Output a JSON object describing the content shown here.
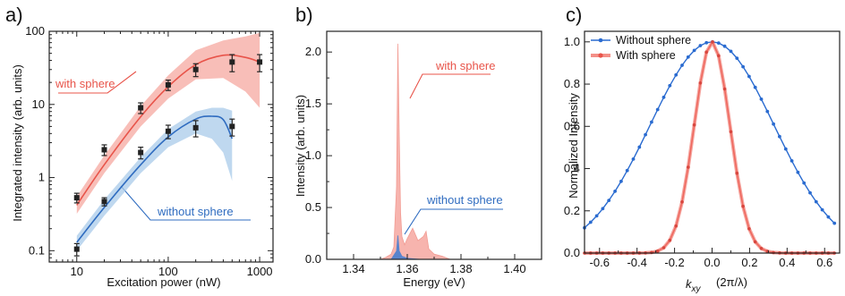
{
  "chart_data": [
    {
      "type": "scatter",
      "panel_label": "a)",
      "xlabel": "Excitation power  (nW)",
      "ylabel": "Integrated intensity  (arb. units)",
      "xscale": "log",
      "yscale": "log",
      "xlim": [
        5,
        1400
      ],
      "ylim": [
        0.07,
        100
      ],
      "xticks": [
        {
          "v": 10,
          "label": "10"
        },
        {
          "v": 100,
          "label": "100"
        },
        {
          "v": 1000,
          "label": "1000"
        }
      ],
      "yticks": [
        {
          "v": 0.1,
          "label": "0.1"
        },
        {
          "v": 1,
          "label": "1"
        },
        {
          "v": 10,
          "label": "10"
        },
        {
          "v": 100,
          "label": "100"
        }
      ],
      "series": [
        {
          "name": "with sphere",
          "color": "#e8544a",
          "band_color": "#f6a8a0",
          "x": [
            10,
            20,
            50,
            100,
            200,
            500,
            1000
          ],
          "y": [
            0.53,
            2.4,
            9.0,
            18.5,
            30,
            38,
            38
          ],
          "err": [
            0.08,
            0.4,
            1.5,
            3,
            6,
            10,
            10
          ],
          "fit_x": [
            10,
            20,
            50,
            100,
            200,
            400,
            700,
            1000
          ],
          "fit_y": [
            0.42,
            1.5,
            6.8,
            17.5,
            35,
            47,
            44,
            38
          ],
          "band_lo": [
            0.32,
            1.15,
            5.0,
            12,
            22,
            23,
            15,
            9
          ],
          "band_hi": [
            0.55,
            2.0,
            9.5,
            25,
            55,
            75,
            85,
            95
          ]
        },
        {
          "name": "without sphere",
          "color": "#2f6cc0",
          "band_color": "#a9cbea",
          "x": [
            10,
            20,
            50,
            100,
            200,
            500
          ],
          "y": [
            0.105,
            0.47,
            2.2,
            4.3,
            4.8,
            5.0
          ],
          "err": [
            0.02,
            0.06,
            0.4,
            0.9,
            1.2,
            1.3
          ],
          "fit_x": [
            10,
            20,
            50,
            100,
            200,
            300,
            400,
            500
          ],
          "fit_y": [
            0.13,
            0.39,
            1.5,
            3.6,
            6.3,
            6.9,
            6.2,
            3.4
          ],
          "band_lo": [
            0.1,
            0.3,
            1.15,
            2.6,
            4.0,
            3.4,
            2.2,
            0.9
          ],
          "band_hi": [
            0.16,
            0.5,
            1.9,
            4.6,
            8.0,
            9.0,
            9.0,
            8.2
          ]
        }
      ],
      "annotations": [
        {
          "text": "with sphere",
          "color": "#e8544a"
        },
        {
          "text": "without sphere",
          "color": "#2f6cc0"
        }
      ]
    },
    {
      "type": "area",
      "panel_label": "b)",
      "xlabel": "Energy (eV)",
      "ylabel": "Intensity (arb. units)",
      "xlim": [
        1.33,
        1.41
      ],
      "ylim": [
        0,
        2.2
      ],
      "xticks": [
        {
          "v": 1.34,
          "label": "1.34"
        },
        {
          "v": 1.36,
          "label": "1.36"
        },
        {
          "v": 1.38,
          "label": "1.38"
        },
        {
          "v": 1.4,
          "label": "1.40"
        }
      ],
      "yticks": [
        {
          "v": 0,
          "label": "0.0"
        },
        {
          "v": 0.5,
          "label": "0.5"
        },
        {
          "v": 1.0,
          "label": "1.0"
        },
        {
          "v": 1.5,
          "label": "1.5"
        },
        {
          "v": 2.0,
          "label": "2.0"
        }
      ],
      "series": [
        {
          "name": "with sphere",
          "color": "#f6a8a0",
          "x": [
            1.33,
            1.35,
            1.352,
            1.354,
            1.355,
            1.356,
            1.3565,
            1.357,
            1.3575,
            1.358,
            1.359,
            1.36,
            1.362,
            1.364,
            1.366,
            1.367,
            1.368,
            1.37,
            1.373,
            1.376,
            1.38,
            1.41
          ],
          "y": [
            0.0,
            0.0,
            0.02,
            0.05,
            0.12,
            0.7,
            2.08,
            1.2,
            0.45,
            0.22,
            0.14,
            0.2,
            0.3,
            0.18,
            0.22,
            0.27,
            0.1,
            0.05,
            0.03,
            0.0,
            0.0,
            0.0
          ]
        },
        {
          "name": "without sphere",
          "color": "#4a7fd0",
          "x": [
            1.33,
            1.354,
            1.356,
            1.3565,
            1.357,
            1.358,
            1.36,
            1.365,
            1.41
          ],
          "y": [
            0.0,
            0.0,
            0.08,
            0.23,
            0.08,
            0.03,
            0.01,
            0.0,
            0.0
          ]
        }
      ],
      "annotations": [
        {
          "text": "with sphere",
          "color": "#e8544a"
        },
        {
          "text": "without sphere",
          "color": "#2f6cc0"
        }
      ]
    },
    {
      "type": "line",
      "panel_label": "c)",
      "xlabel_main": "k",
      "xlabel_sub": "xy",
      "xlabel_unit": "(2π/λ)",
      "ylabel": "Normalized Intensity",
      "xlim": [
        -0.68,
        0.68
      ],
      "ylim": [
        0,
        1.05
      ],
      "xticks": [
        {
          "v": -0.6,
          "label": "-0.6"
        },
        {
          "v": -0.4,
          "label": "-0.4"
        },
        {
          "v": -0.2,
          "label": "-0.2"
        },
        {
          "v": 0,
          "label": "0.0"
        },
        {
          "v": 0.2,
          "label": "0.2"
        },
        {
          "v": 0.4,
          "label": "0.4"
        },
        {
          "v": 0.6,
          "label": "0.6"
        }
      ],
      "yticks": [
        {
          "v": 0,
          "label": "0.0"
        },
        {
          "v": 0.2,
          "label": "0.2"
        },
        {
          "v": 0.4,
          "label": "0.4"
        },
        {
          "v": 0.6,
          "label": "0.6"
        },
        {
          "v": 0.8,
          "label": "0.8"
        },
        {
          "v": 1.0,
          "label": "1.0"
        }
      ],
      "legend": {
        "placement": "top-left"
      },
      "series": [
        {
          "name": "Without sphere",
          "color": "#2a6bd0",
          "model": "gaussian",
          "sigma": 0.33,
          "x_start": -0.68,
          "x_end": 0.68,
          "step": 0.0325
        },
        {
          "name": "With sphere",
          "color": "#ef6a60",
          "model": "gaussian",
          "sigma": 0.095,
          "x_start": -0.68,
          "x_end": 0.68,
          "step": 0.0325
        }
      ]
    }
  ]
}
